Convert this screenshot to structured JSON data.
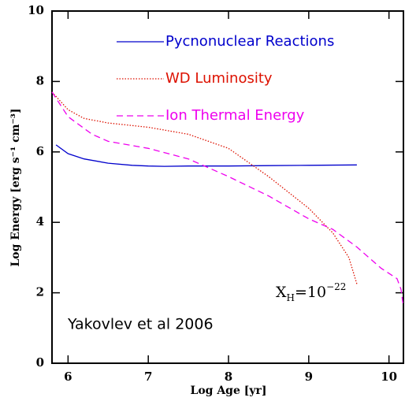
{
  "chart_data": {
    "type": "line",
    "xlabel": "Log Age [yr]",
    "ylabel": "Log Energy [erg s⁻¹ cm⁻³]",
    "xlim": [
      5.8,
      10.18
    ],
    "xticks": [
      6,
      7,
      8,
      9,
      10
    ],
    "ylim": [
      0,
      10
    ],
    "yticks": [
      0,
      2,
      4,
      6,
      8,
      10
    ],
    "series": [
      {
        "name": "Pycnonuclear Reactions",
        "color": "#0000cc",
        "dash": "solid",
        "x": [
          5.85,
          6.0,
          6.2,
          6.5,
          6.8,
          7.0,
          7.2,
          7.5,
          8.0,
          8.5,
          9.0,
          9.6
        ],
        "values": [
          6.2,
          5.95,
          5.8,
          5.68,
          5.62,
          5.6,
          5.59,
          5.6,
          5.6,
          5.61,
          5.62,
          5.63
        ]
      },
      {
        "name": "WD Luminosity",
        "color": "#dd1100",
        "dash": "dotted",
        "x": [
          5.8,
          6.0,
          6.2,
          6.5,
          7.0,
          7.5,
          8.0,
          8.5,
          9.0,
          9.3,
          9.5,
          9.6
        ],
        "values": [
          7.7,
          7.2,
          6.95,
          6.82,
          6.7,
          6.5,
          6.1,
          5.3,
          4.4,
          3.7,
          3.0,
          2.25
        ]
      },
      {
        "name": "Ion Thermal Energy",
        "color": "#ee00ee",
        "dash": "dashed",
        "x": [
          5.8,
          6.0,
          6.3,
          6.5,
          7.0,
          7.5,
          8.0,
          8.5,
          9.0,
          9.3,
          9.6,
          9.9,
          10.1,
          10.15,
          10.18
        ],
        "values": [
          7.7,
          7.0,
          6.5,
          6.3,
          6.1,
          5.8,
          5.3,
          4.75,
          4.1,
          3.8,
          3.3,
          2.7,
          2.4,
          2.1,
          1.6
        ]
      }
    ],
    "annotations": {
      "composition": {
        "base": "X",
        "sub": "H",
        "mid": "=10",
        "sup": "−22"
      },
      "credit": "Yakovlev et al 2006"
    }
  }
}
